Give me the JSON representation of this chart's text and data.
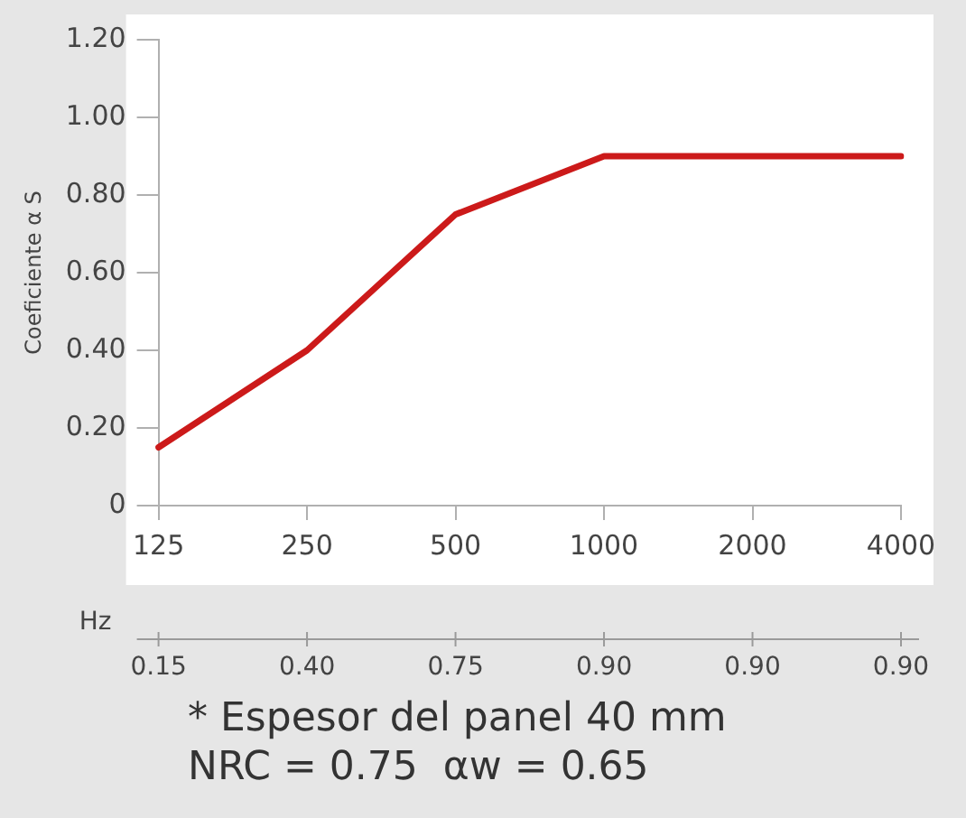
{
  "chart_data": {
    "type": "line",
    "ylabel": "Coeficiente α S",
    "xlabel": "Hz",
    "categories": [
      "125",
      "250",
      "500",
      "1000",
      "2000",
      "4000"
    ],
    "series": [
      {
        "color": "#cc1a1a",
        "values": [
          0.15,
          0.4,
          0.75,
          0.9,
          0.9,
          0.9
        ],
        "value_labels": [
          "0.15",
          "0.40",
          "0.75",
          "0.90",
          "0.90",
          "0.90"
        ]
      }
    ],
    "ylim": [
      0,
      1.2
    ],
    "yticks": [
      0,
      {
        "value": 0.2,
        "label": "0.20"
      },
      {
        "value": 0.4,
        "label": "0.40"
      },
      {
        "value": 0.6,
        "label": "0.60"
      },
      {
        "value": 0.8,
        "label": "0.80"
      },
      {
        "value": 1.0,
        "label": "1.00"
      },
      {
        "value": 1.2,
        "label": "1.20"
      }
    ],
    "grid": false,
    "annotations": [
      "* Espesor del panel 40 mm",
      "NRC = 0.75  αw = 0.65"
    ]
  }
}
